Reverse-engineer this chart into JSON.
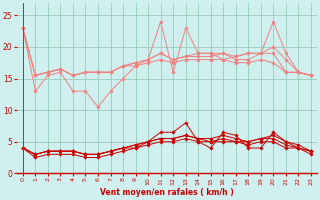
{
  "x": [
    0,
    1,
    2,
    3,
    4,
    5,
    6,
    7,
    8,
    9,
    10,
    11,
    12,
    13,
    14,
    15,
    16,
    17,
    18,
    19,
    20,
    21,
    22,
    23
  ],
  "series_light": [
    [
      23,
      13,
      15.5,
      16,
      13,
      13,
      10.5,
      13,
      15,
      17,
      18,
      24,
      16,
      23,
      19,
      19,
      18,
      18.5,
      19,
      19,
      24,
      19,
      16,
      15.5
    ],
    [
      23,
      15.5,
      16,
      16.5,
      15.5,
      16,
      16,
      16,
      17,
      17.5,
      18,
      19,
      18,
      18.5,
      19,
      19,
      19,
      18.5,
      19,
      19,
      20,
      18,
      16,
      15.5
    ],
    [
      23,
      15.5,
      16,
      16.5,
      15.5,
      16,
      16,
      16,
      17,
      17.5,
      18,
      19,
      18,
      18.5,
      18.5,
      18.5,
      19,
      18,
      18,
      19,
      19,
      16,
      16,
      15.5
    ],
    [
      23,
      15.5,
      16,
      16.5,
      15.5,
      16,
      16,
      16,
      17,
      17,
      17.5,
      18,
      17.5,
      18,
      18,
      18,
      18,
      17.5,
      17.5,
      18,
      17.5,
      16,
      16,
      15.5
    ]
  ],
  "series_dark": [
    [
      4,
      2.5,
      3,
      3,
      3,
      2.5,
      2.5,
      3,
      3.5,
      4,
      5,
      6.5,
      6.5,
      8,
      5,
      4,
      6.5,
      6,
      4,
      4,
      6.5,
      5,
      4,
      3
    ],
    [
      4,
      3,
      3.5,
      3.5,
      3.5,
      3,
      3,
      3.5,
      4,
      4.5,
      5,
      5.5,
      5.5,
      6,
      5.5,
      5.5,
      6,
      5.5,
      5,
      5.5,
      6,
      5,
      4.5,
      3.5
    ],
    [
      4,
      3,
      3.5,
      3.5,
      3.5,
      3,
      3,
      3.5,
      4,
      4.5,
      5,
      5.5,
      5.5,
      6,
      5.5,
      5,
      5.5,
      5,
      5,
      5.5,
      5.5,
      4.5,
      4,
      3.5
    ],
    [
      4,
      3,
      3.5,
      3.5,
      3.5,
      3,
      3,
      3.5,
      4,
      4,
      4.5,
      5,
      5,
      5.5,
      5,
      5,
      5,
      5,
      4.5,
      5,
      5,
      4,
      4,
      3.5
    ]
  ],
  "color_light": "#f08080",
  "color_dark": "#cc0000",
  "bg_color": "#cff0ee",
  "grid_color": "#99ccbb",
  "xlabel": "Vent moyen/en rafales ( km/h )",
  "xlabel_color": "#cc0000",
  "tick_color": "#cc0000",
  "ylim": [
    0,
    27
  ],
  "xlim": [
    -0.5,
    23.5
  ],
  "yticks": [
    0,
    5,
    10,
    15,
    20,
    25
  ],
  "xticks": [
    0,
    1,
    2,
    3,
    4,
    5,
    6,
    7,
    8,
    9,
    10,
    11,
    12,
    13,
    14,
    15,
    16,
    17,
    18,
    19,
    20,
    21,
    22,
    23
  ]
}
